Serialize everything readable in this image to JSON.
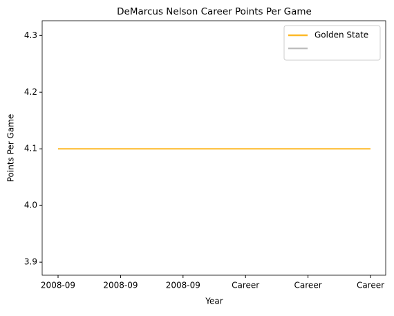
{
  "chart_data": {
    "type": "line",
    "title": "DeMarcus Nelson Career Points Per Game",
    "xlabel": "Year",
    "ylabel": "Points Per Game",
    "categories": [
      "2008-09",
      "2008-09",
      "2008-09",
      "Career",
      "Career",
      "Career"
    ],
    "series": [
      {
        "name": "Golden State",
        "color": "#fdb927",
        "values": [
          4.1,
          4.1,
          4.1,
          4.1,
          4.1,
          4.1
        ]
      },
      {
        "color": "#bfbfbf",
        "values": [
          null,
          null,
          null,
          null,
          null,
          null
        ]
      }
    ],
    "ylim": [
      3.877,
      4.326
    ],
    "yticks": [
      3.9,
      {
        "value": 4,
        "label": "4.0"
      },
      4.1,
      4.2,
      4.3
    ],
    "legend": "upper right"
  }
}
